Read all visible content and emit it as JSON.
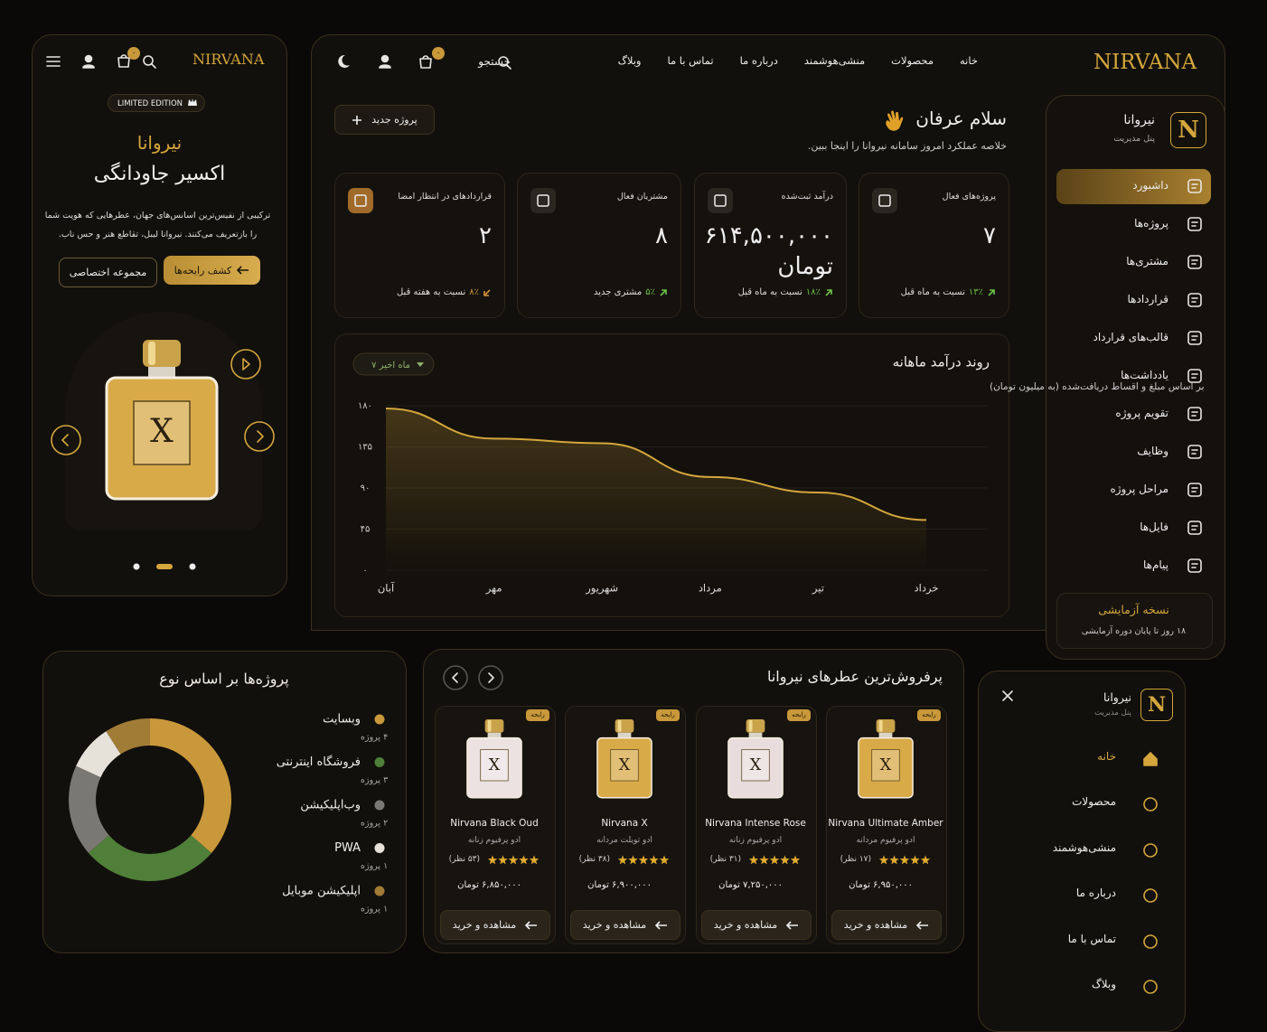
{
  "mobile": {
    "brand": "NIRVANA",
    "cart_count": "۰",
    "badge": "LIMITED EDITION",
    "title_accent": "نیروانا",
    "title": "اکسیر جاودانگی",
    "description": "ترکیبی از نفیس‌ترین اسانس‌های جهان، عطرهایی که هویت شما را بازتعریف می‌کنند. نیروانا لیبل، تقاطع هنر و حس ناب.",
    "primary_button": "کشف رایحه‌ها",
    "secondary_button": "مجموعه اختصاصی",
    "bottle_label": "X"
  },
  "header": {
    "brand": "NIRVANA",
    "nav": [
      "خانه",
      "محصولات",
      "منشی‌هوشمند",
      "درباره ما",
      "تماس با ما",
      "وبلاگ"
    ],
    "search": "جستجو",
    "cart_count": "۰"
  },
  "sidebar": {
    "logo": "N",
    "brand": "نیروانا",
    "subtitle": "پنل مدیریت",
    "items": [
      "داشبورد",
      "پروژه‌ها",
      "مشتری‌ها",
      "قراردادها",
      "قالب‌های قرارداد",
      "یادداشت‌ها",
      "تقویم پروژه",
      "وظایف",
      "مراحل پروژه",
      "فایل‌ها",
      "پیام‌ها"
    ],
    "trial_title": "نسخه آزمایشی",
    "trial_text": "۱۸ روز تا پایان دوره آزمایشی"
  },
  "greeting": {
    "title": "سلام عرفان",
    "subtitle": "خلاصه عملکرد امروز سامانه نیروانا را اینجا ببین.",
    "new_project": "پروژه جدید"
  },
  "stats": [
    {
      "label": "پروژه‌های فعال",
      "value": "۷",
      "change": "۱۳٪",
      "note": "نسبت به ماه قبل"
    },
    {
      "label": "درآمد ثبت‌شده",
      "value": "۶۱۴,۵۰۰,۰۰۰ تومان",
      "change": "۱۸٪",
      "note": "نسبت به ماه قبل"
    },
    {
      "label": "مشتریان فعال",
      "value": "۸",
      "change": "۵٪",
      "note": "مشتری جدید"
    },
    {
      "label": "قراردادهای در انتظار امضا",
      "value": "۲",
      "change": "۸٪",
      "note": "نسبت به هفته قبل"
    }
  ],
  "chart_data": [
    {
      "type": "line",
      "title": "روند درآمد ماهانه",
      "subtitle": "بر اساس مبلغ و اقساط دریافت‌شده (به میلیون تومان)",
      "filter": "۷ ماه اخیر",
      "categories": [
        "آبان",
        "مهر",
        "شهریور",
        "مرداد",
        "تیر",
        "خرداد"
      ],
      "values": [
        177,
        144,
        139,
        102,
        85,
        55
      ],
      "color": "#d4a63c",
      "ylim": [
        0,
        180
      ],
      "yticks": [
        {
          "value": 0,
          "label": "۰"
        },
        {
          "value": 45,
          "label": "۴۵"
        },
        {
          "value": 90,
          "label": "۹۰"
        },
        {
          "value": 135,
          "label": "۱۳۵"
        },
        {
          "value": 180,
          "label": "۱۸۰"
        }
      ],
      "grid": true
    },
    {
      "type": "pie",
      "title": "پروژه‌ها بر اساس نوع",
      "categories": [
        "وبسایت",
        "فروشگاه اینترنتی",
        "وب‌اپلیکیشن",
        "PWA",
        "اپلیکیشن موبایل"
      ],
      "values": [
        4,
        3,
        2,
        1,
        1
      ],
      "value_labels": [
        "۴ پروژه",
        "۳ پروژه",
        "۲ پروژه",
        "۱ پروژه",
        "۱ پروژه"
      ],
      "colors": [
        "#c9983a",
        "#4f7f38",
        "#7a7873",
        "#e6e2da",
        "#a07c36"
      ]
    }
  ],
  "products": {
    "title": "پرفروش‌ترین عطرهای نیروانا",
    "items": [
      {
        "tag": "رایحه",
        "name": "Nirvana Ultimate Amber",
        "type": "ادو پرفیوم مردانه",
        "reviews": "(۱۷ نظر)",
        "price": "۶,۹۵۰,۰۰۰ تومان",
        "button": "مشاهده و خرید",
        "label": "X",
        "color": "#d8aa48"
      },
      {
        "tag": "رایحه",
        "name": "Nirvana Intense Rose",
        "type": "ادو پرفیوم زنانه",
        "reviews": "(۳۱ نظر)",
        "price": "۷,۲۵۰,۰۰۰ تومان",
        "button": "مشاهده و خرید",
        "label": "X",
        "color": "#e8dcdc"
      },
      {
        "tag": "رایحه",
        "name": "Nirvana X",
        "type": "ادو تویلت مردانه",
        "reviews": "(۳۸ نظر)",
        "price": "۶,۹۰۰,۰۰۰ تومان",
        "button": "مشاهده و خرید",
        "label": "X",
        "color": "#d8aa48"
      },
      {
        "tag": "رایحه",
        "name": "Nirvana Black Oud",
        "type": "ادو پرفیوم زنانه",
        "reviews": "(۵۳ نظر)",
        "price": "۶,۸۵۰,۰۰۰ تومان",
        "button": "مشاهده و خرید",
        "label": "X",
        "color": "#ece2e2"
      }
    ]
  },
  "mobile_menu": {
    "logo": "N",
    "brand": "نیروانا",
    "subtitle": "پنل مدیریت",
    "items": [
      "خانه",
      "محصولات",
      "منشی‌هوشمند",
      "درباره ما",
      "تماس با ما",
      "وبلاگ"
    ]
  }
}
